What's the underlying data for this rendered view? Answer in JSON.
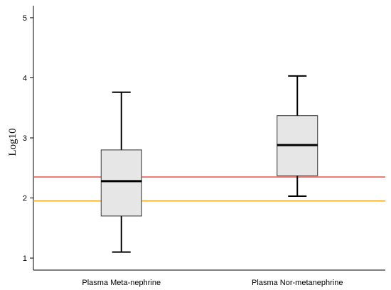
{
  "chart_data": {
    "type": "boxplot",
    "ylabel": "Log10",
    "ylim": [
      0.8,
      5.2
    ],
    "yticks": [
      1,
      2,
      3,
      4,
      5
    ],
    "categories": [
      "Plasma Meta-nephrine",
      "Plasma Nor-metanephrine"
    ],
    "boxes": [
      {
        "whisker_low": 1.1,
        "q1": 1.7,
        "median": 2.28,
        "q3": 2.8,
        "whisker_high": 3.76
      },
      {
        "whisker_low": 2.03,
        "q1": 2.37,
        "median": 2.88,
        "q3": 3.37,
        "whisker_high": 4.03
      }
    ],
    "reference_lines": [
      {
        "value": 2.35,
        "color": "#e8504a"
      },
      {
        "value": 1.95,
        "color": "#f5a623"
      }
    ],
    "box_fill": "#e6e6e6",
    "legend": "none",
    "grid": false
  }
}
